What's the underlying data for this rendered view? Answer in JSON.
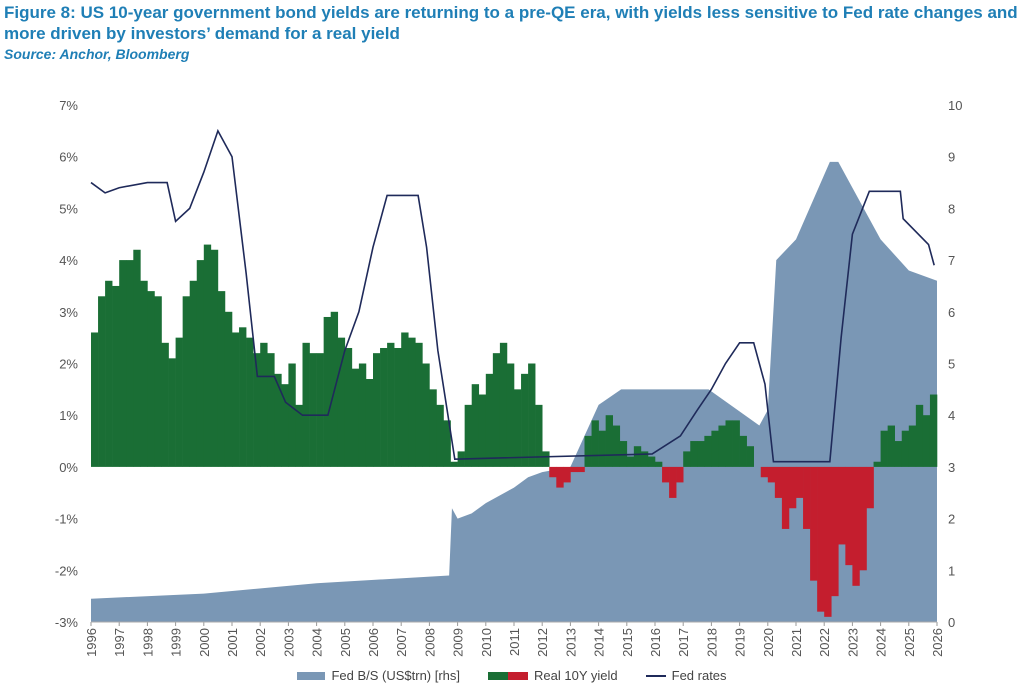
{
  "title": "Figure 8: US 10-year government bond yields are returning to a pre-QE era, with yields less sensitive to Fed rate changes and more driven by investors’ demand for a real yield",
  "source": "Source: Anchor, Bloomberg",
  "colors": {
    "title": "#1f7fb6",
    "balance_sheet": "#7a97b5",
    "real_pos": "#1a6e35",
    "real_neg": "#c41e2e",
    "fed": "#1f2a5a"
  },
  "chart_data": {
    "type": "bar+line+area",
    "ylabel_left": "%",
    "ylabel_right": "US$trn",
    "ylim_left": [
      -3,
      7
    ],
    "ylim_right": [
      0,
      10
    ],
    "yticks_left": [
      "7%",
      "6%",
      "5%",
      "4%",
      "3%",
      "2%",
      "1%",
      "0%",
      "-1%",
      "-2%",
      "-3%"
    ],
    "yticks_right": [
      "10",
      "9",
      "8",
      "7",
      "6",
      "5",
      "4",
      "3",
      "2",
      "1",
      "0"
    ],
    "xlim": [
      1996,
      2026
    ],
    "xticks": [
      "1996",
      "1997",
      "1998",
      "1999",
      "2000",
      "2001",
      "2002",
      "2003",
      "2004",
      "2005",
      "2006",
      "2007",
      "2008",
      "2009",
      "2010",
      "2011",
      "2012",
      "2013",
      "2014",
      "2015",
      "2016",
      "2017",
      "2018",
      "2019",
      "2020",
      "2021",
      "2022",
      "2023",
      "2024",
      "2025",
      "2026"
    ],
    "legend": {
      "placement": "bottom",
      "items": [
        "Fed B/S (US$trn) [rhs]",
        "Real 10Y yield",
        "Fed rates"
      ]
    },
    "fed_bs": {
      "name": "Fed B/S (US$trn) [rhs]",
      "x": [
        1996,
        2000,
        2004,
        2008.7,
        2008.8,
        2009,
        2009.5,
        2010,
        2011,
        2011.5,
        2012,
        2013,
        2014,
        2014.8,
        2017.9,
        2019.7,
        2020,
        2020.3,
        2021,
        2022.2,
        2022.5,
        2023,
        2024,
        2025,
        2026
      ],
      "y": [
        0.45,
        0.55,
        0.75,
        0.9,
        2.2,
        2.0,
        2.1,
        2.3,
        2.6,
        2.8,
        2.9,
        3.0,
        4.2,
        4.5,
        4.5,
        3.8,
        4.1,
        7.0,
        7.4,
        8.9,
        8.9,
        8.4,
        7.4,
        6.8,
        6.6
      ]
    },
    "fed_rates": {
      "name": "Fed rates",
      "x": [
        1996,
        1996.5,
        1997,
        1998,
        1998.7,
        1999,
        1999.5,
        2000,
        2000.5,
        2001,
        2001.5,
        2001.9,
        2002.5,
        2002.9,
        2003.5,
        2004.4,
        2005,
        2005.5,
        2006,
        2006.5,
        2007.6,
        2007.9,
        2008.3,
        2008.9,
        2015.9,
        2016.9,
        2017.5,
        2018,
        2018.5,
        2019,
        2019.5,
        2019.7,
        2019.9,
        2020.2,
        2022.2,
        2022.6,
        2023,
        2023.6,
        2024.7,
        2024.8,
        2025.7,
        2025.9
      ],
      "y": [
        5.5,
        5.3,
        5.4,
        5.5,
        5.5,
        4.75,
        5.0,
        5.7,
        6.5,
        6.0,
        3.75,
        1.75,
        1.75,
        1.25,
        1.0,
        1.0,
        2.25,
        3.0,
        4.25,
        5.25,
        5.25,
        4.25,
        2.25,
        0.15,
        0.25,
        0.6,
        1.1,
        1.5,
        2.0,
        2.4,
        2.4,
        2.0,
        1.6,
        0.1,
        0.1,
        2.5,
        4.5,
        5.33,
        5.33,
        4.8,
        4.3,
        3.9
      ]
    },
    "real_10y": {
      "name": "Real 10Y yield",
      "x_start": 1996,
      "step_years": 0.25,
      "values": [
        2.6,
        3.3,
        3.6,
        3.5,
        4.0,
        4.0,
        4.2,
        3.6,
        3.4,
        3.3,
        2.4,
        2.1,
        2.5,
        3.3,
        3.6,
        4.0,
        4.3,
        4.2,
        3.4,
        3.0,
        2.6,
        2.7,
        2.5,
        2.2,
        2.4,
        2.2,
        1.8,
        1.6,
        2.0,
        1.2,
        2.4,
        2.2,
        2.2,
        2.9,
        3.0,
        2.5,
        2.3,
        1.9,
        2.0,
        1.7,
        2.2,
        2.3,
        2.4,
        2.3,
        2.6,
        2.5,
        2.4,
        2.0,
        1.5,
        1.2,
        0.9,
        0.1,
        0.3,
        1.2,
        1.6,
        1.4,
        1.8,
        2.2,
        2.4,
        2.0,
        1.5,
        1.8,
        2.0,
        1.2,
        0.3,
        -0.2,
        -0.4,
        -0.3,
        -0.1,
        -0.1,
        0.6,
        0.9,
        0.7,
        1.0,
        0.8,
        0.5,
        0.2,
        0.4,
        0.3,
        0.2,
        0.1,
        -0.3,
        -0.6,
        -0.3,
        0.3,
        0.5,
        0.5,
        0.6,
        0.7,
        0.8,
        0.9,
        0.9,
        0.6,
        0.4,
        0.0,
        -0.2,
        -0.3,
        -0.6,
        -1.2,
        -0.8,
        -0.6,
        -1.2,
        -2.2,
        -2.8,
        -2.9,
        -2.5,
        -1.5,
        -1.9,
        -2.3,
        -2.0,
        -0.8,
        0.1,
        0.7,
        0.8,
        0.5,
        0.7,
        0.8,
        1.2,
        1.0,
        1.4
      ]
    }
  }
}
